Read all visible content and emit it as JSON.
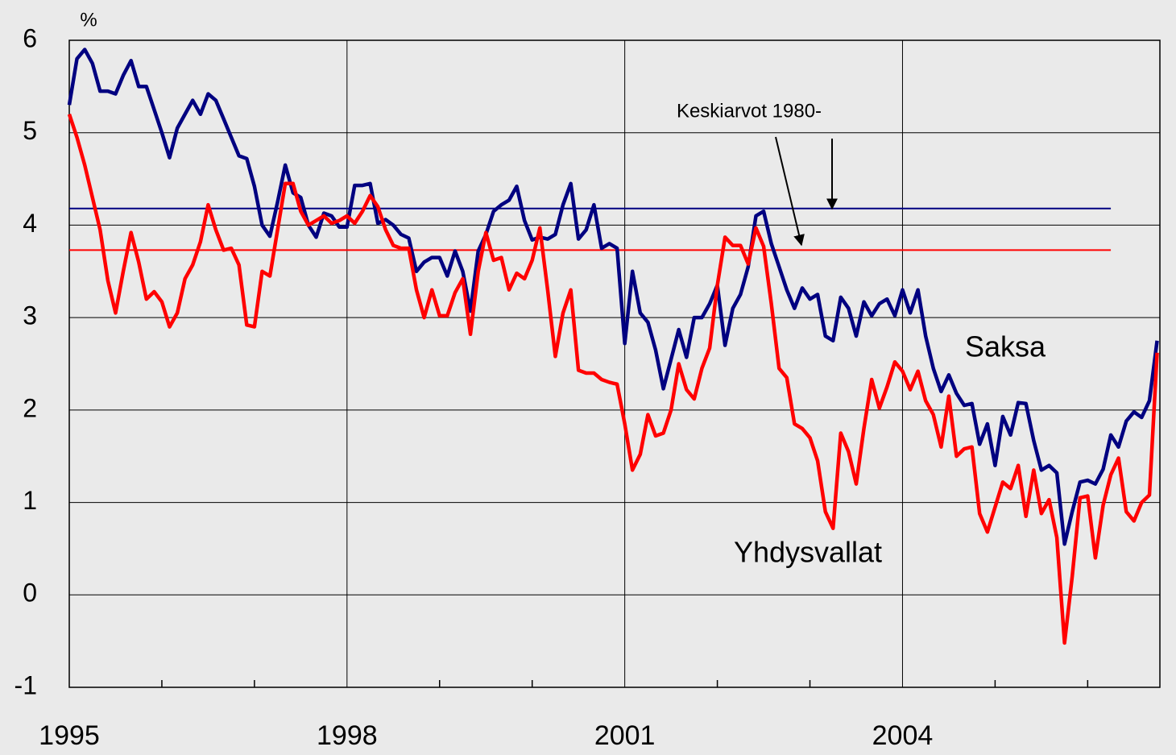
{
  "chart_data": {
    "type": "line",
    "y_unit": "%",
    "annotation": "Keskiarvot 1980-",
    "x": [
      1995,
      1995.083,
      1995.167,
      1995.25,
      1995.333,
      1995.417,
      1995.5,
      1995.583,
      1995.667,
      1995.75,
      1995.833,
      1995.917,
      1996,
      1996.083,
      1996.167,
      1996.25,
      1996.333,
      1996.417,
      1996.5,
      1996.583,
      1996.667,
      1996.75,
      1996.833,
      1996.917,
      1997,
      1997.083,
      1997.167,
      1997.25,
      1997.333,
      1997.417,
      1997.5,
      1997.583,
      1997.667,
      1997.75,
      1997.833,
      1997.917,
      1998,
      1998.083,
      1998.167,
      1998.25,
      1998.333,
      1998.417,
      1998.5,
      1998.583,
      1998.667,
      1998.75,
      1998.833,
      1998.917,
      1999,
      1999.083,
      1999.167,
      1999.25,
      1999.333,
      1999.417,
      1999.5,
      1999.583,
      1999.667,
      1999.75,
      1999.833,
      1999.917,
      2000,
      2000.083,
      2000.167,
      2000.25,
      2000.333,
      2000.417,
      2000.5,
      2000.583,
      2000.667,
      2000.75,
      2000.833,
      2000.917,
      2001,
      2001.083,
      2001.167,
      2001.25,
      2001.333,
      2001.417,
      2001.5,
      2001.583,
      2001.667,
      2001.75,
      2001.833,
      2001.917,
      2002,
      2002.083,
      2002.167,
      2002.25,
      2002.333,
      2002.417,
      2002.5,
      2002.583,
      2002.667,
      2002.75,
      2002.833,
      2002.917,
      2003,
      2003.083,
      2003.167,
      2003.25,
      2003.333,
      2003.417,
      2003.5,
      2003.583,
      2003.667,
      2003.75,
      2003.833,
      2003.917,
      2004,
      2004.083,
      2004.167,
      2004.25,
      2004.333,
      2004.417,
      2004.5,
      2004.583,
      2004.667,
      2004.75,
      2004.833,
      2004.917,
      2005,
      2005.083,
      2005.167,
      2005.25,
      2005.333,
      2005.417,
      2005.5,
      2005.583,
      2005.667,
      2005.75,
      2005.833,
      2005.917,
      2006,
      2006.083,
      2006.167,
      2006.25,
      2006.333,
      2006.417,
      2006.5,
      2006.583,
      2006.667,
      2006.75
    ],
    "series": [
      {
        "name": "Saksa",
        "color": "#000080",
        "mean": 4.18,
        "values": [
          5.3,
          5.8,
          5.9,
          5.75,
          5.45,
          5.45,
          5.42,
          5.62,
          5.78,
          5.5,
          5.5,
          5.25,
          5.0,
          4.73,
          5.05,
          5.2,
          5.35,
          5.2,
          5.42,
          5.35,
          5.15,
          4.95,
          4.75,
          4.72,
          4.42,
          4.0,
          3.88,
          4.25,
          4.65,
          4.35,
          4.3,
          4.0,
          3.87,
          4.13,
          4.1,
          3.98,
          3.98,
          4.43,
          4.43,
          4.45,
          4.02,
          4.06,
          4.0,
          3.9,
          3.86,
          3.5,
          3.6,
          3.65,
          3.65,
          3.45,
          3.72,
          3.5,
          3.07,
          3.72,
          3.9,
          4.15,
          4.22,
          4.27,
          4.42,
          4.05,
          3.84,
          3.87,
          3.85,
          3.9,
          4.22,
          4.45,
          3.85,
          3.95,
          4.22,
          3.75,
          3.8,
          3.75,
          2.72,
          3.5,
          3.05,
          2.95,
          2.65,
          2.23,
          2.55,
          2.87,
          2.57,
          3.0,
          3.0,
          3.15,
          3.35,
          2.7,
          3.1,
          3.25,
          3.55,
          4.1,
          4.15,
          3.8,
          3.55,
          3.3,
          3.1,
          3.32,
          3.2,
          3.25,
          2.8,
          2.75,
          3.22,
          3.1,
          2.8,
          3.17,
          3.02,
          3.15,
          3.2,
          3.02,
          3.3,
          3.05,
          3.3,
          2.8,
          2.45,
          2.2,
          2.38,
          2.18,
          2.05,
          2.07,
          1.63,
          1.85,
          1.4,
          1.93,
          1.73,
          2.08,
          2.07,
          1.67,
          1.35,
          1.4,
          1.32,
          0.55,
          0.9,
          1.22,
          1.24,
          1.2,
          1.36,
          1.73,
          1.6,
          1.88,
          1.98,
          1.92,
          2.1,
          2.75
        ]
      },
      {
        "name": "Yhdysvallat",
        "color": "#ff0000",
        "mean": 3.73,
        "values": [
          5.2,
          4.95,
          4.65,
          4.3,
          3.95,
          3.4,
          3.05,
          3.5,
          3.92,
          3.6,
          3.2,
          3.28,
          3.17,
          2.9,
          3.05,
          3.42,
          3.57,
          3.82,
          4.22,
          3.95,
          3.73,
          3.75,
          3.57,
          2.92,
          2.9,
          3.5,
          3.45,
          3.95,
          4.45,
          4.45,
          4.15,
          4.0,
          4.05,
          4.1,
          4.02,
          4.05,
          4.1,
          4.02,
          4.15,
          4.32,
          4.2,
          3.95,
          3.78,
          3.75,
          3.75,
          3.3,
          3.0,
          3.3,
          3.02,
          3.02,
          3.27,
          3.42,
          2.82,
          3.5,
          3.92,
          3.62,
          3.65,
          3.3,
          3.48,
          3.42,
          3.62,
          3.97,
          3.3,
          2.58,
          3.05,
          3.3,
          2.43,
          2.4,
          2.4,
          2.33,
          2.3,
          2.28,
          1.85,
          1.35,
          1.52,
          1.95,
          1.72,
          1.75,
          2.0,
          2.5,
          2.22,
          2.12,
          2.45,
          2.67,
          3.35,
          3.87,
          3.78,
          3.78,
          3.58,
          3.97,
          3.77,
          3.15,
          2.45,
          2.35,
          1.85,
          1.8,
          1.7,
          1.45,
          0.9,
          0.72,
          1.75,
          1.55,
          1.2,
          1.8,
          2.33,
          2.02,
          2.25,
          2.52,
          2.42,
          2.22,
          2.42,
          2.1,
          1.95,
          1.6,
          2.15,
          1.5,
          1.58,
          1.6,
          0.88,
          0.68,
          0.95,
          1.22,
          1.15,
          1.4,
          0.85,
          1.35,
          0.88,
          1.03,
          0.62,
          -0.52,
          0.2,
          1.05,
          1.07,
          0.4,
          0.97,
          1.3,
          1.48,
          0.9,
          0.8,
          1.0,
          1.08,
          2.62
        ]
      }
    ],
    "mean_xrange": [
      1995,
      2006.25
    ],
    "xlim": [
      1995,
      2006.78
    ],
    "xticks": [
      1995,
      1998,
      2001,
      2004
    ],
    "xminor_ticks": [
      1996,
      1997,
      1999,
      2000,
      2002,
      2003,
      2005,
      2006
    ],
    "ylim": [
      -1,
      6
    ],
    "yticks": [
      -1,
      0,
      1,
      2,
      3,
      4,
      5,
      6
    ],
    "grid": true
  }
}
